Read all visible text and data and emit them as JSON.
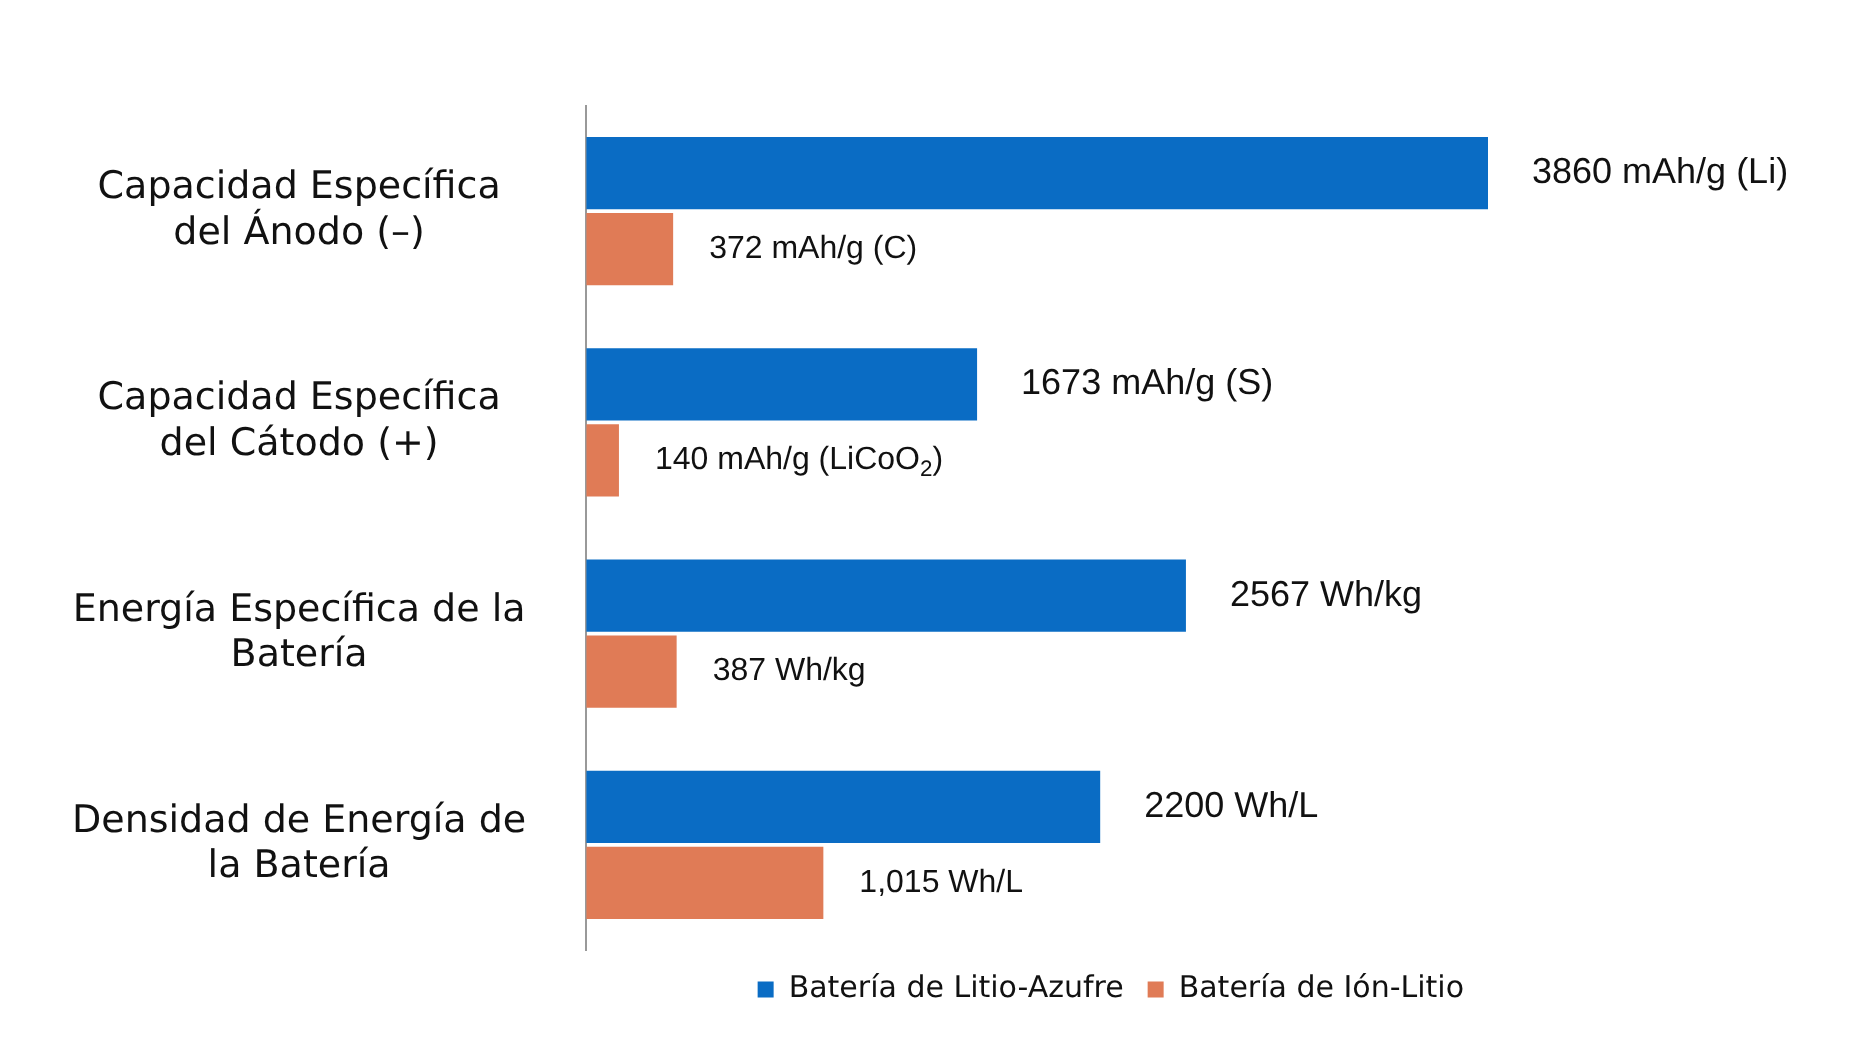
{
  "chart_data": {
    "type": "bar",
    "orientation": "horizontal",
    "categories": [
      "Capacidad Específica del Ánodo (–)",
      "Capacidad Específica del Cátodo (+)",
      "Energía Específica de la Batería",
      "Densidad de Energía de la Batería"
    ],
    "series": [
      {
        "name": "Batería de Litio-Azufre",
        "color": "#0a6cc4",
        "values": [
          3860,
          1673,
          2567,
          2200
        ],
        "value_labels": [
          "3860 mAh/g (Li)",
          "1673 mAh/g (S)",
          "2567 Wh/kg",
          "2200 Wh/L"
        ]
      },
      {
        "name": "Batería de Ión-Litio",
        "color": "#e07b56",
        "values": [
          372,
          140,
          387,
          1015
        ],
        "value_labels": [
          "372 mAh/g (C)",
          "140 mAh/g (LiCoO$_{2}$)",
          "387 Wh/kg",
          "1,015 Wh/L"
        ]
      }
    ],
    "legend": "bottom right"
  }
}
